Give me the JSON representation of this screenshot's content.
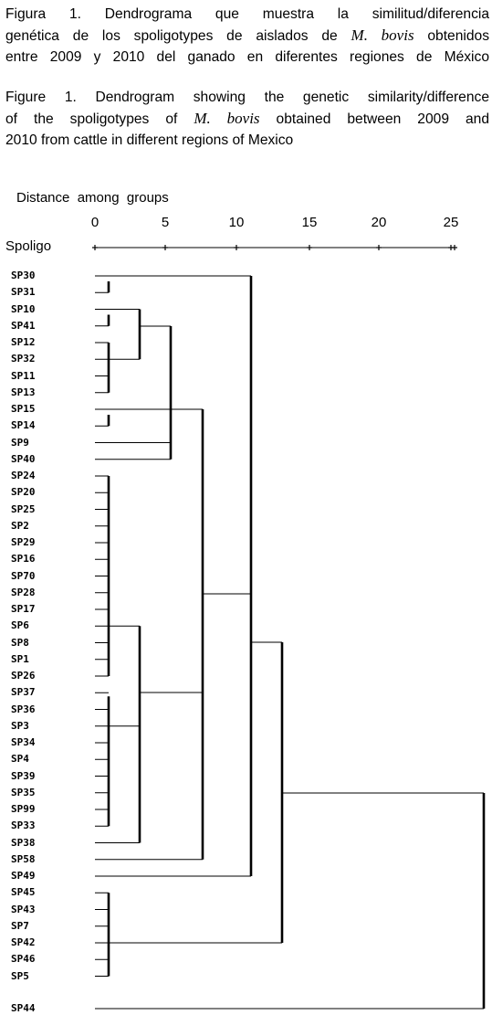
{
  "caption_es": {
    "line1": "Figura 1.  Dendrograma que muestra la similitud/diferencia",
    "line2_pre": "genética de los spoligotypes de aislados de ",
    "species": "M. bovis",
    "line2_post": " obtenidos",
    "line3": "entre 2009 y 2010 del ganado en diferentes regiones de México"
  },
  "caption_en": {
    "line1": "Figure 1.  Dendrogram showing the genetic similarity/difference",
    "line2_pre": "of the spoligotypes of ",
    "species": "M. bovis",
    "line2_post": " obtained between 2009 and",
    "line3": "2010 from cattle in different regions of Mexico"
  },
  "axis": {
    "title": "Distance  among  groups",
    "ticks": [
      "0",
      "5",
      "10",
      "15",
      "20",
      "25"
    ],
    "row_label": "Spoligo",
    "ruler": "+—————+—————+—————+—————+—————+"
  },
  "leaves": [
    "SP30",
    "SP31",
    "SP10",
    "SP41",
    "SP12",
    "SP32",
    "SP11",
    "SP13",
    "SP15",
    "SP14",
    "SP9",
    "SP40",
    "SP24",
    "SP20",
    "SP25",
    "SP2",
    "SP29",
    "SP16",
    "SP70",
    "SP28",
    "SP17",
    "SP6",
    "SP8",
    "SP1",
    "SP26",
    "SP37",
    "SP36",
    "SP3",
    "SP34",
    "SP4",
    "SP39",
    "SP35",
    "SP99",
    "SP33",
    "SP38",
    "SP58",
    "SP49",
    "SP45",
    "SP43",
    "SP7",
    "SP42",
    "SP46",
    "SP5",
    "SP44"
  ],
  "colors": {
    "ink": "#000000",
    "background": "#ffffff"
  }
}
